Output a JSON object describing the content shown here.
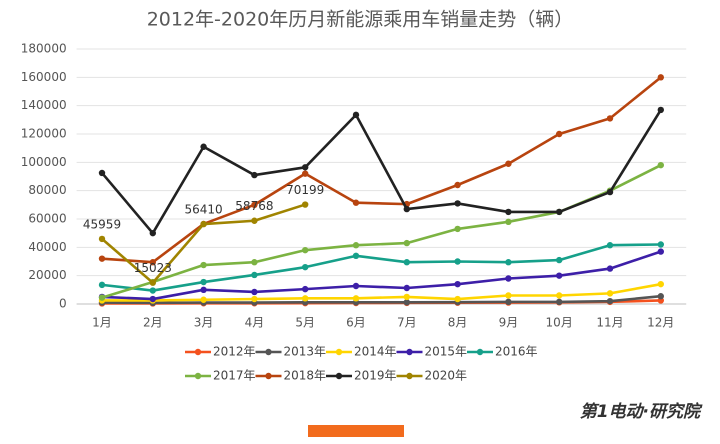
{
  "chart_data": {
    "type": "line",
    "title": "2012年-2020年历月新能源乘用车销量走势（辆）",
    "brand": "第1电动·研究院",
    "categories": [
      "1月",
      "2月",
      "3月",
      "4月",
      "5月",
      "6月",
      "7月",
      "8月",
      "9月",
      "10月",
      "11月",
      "12月"
    ],
    "ylim": [
      0,
      180000
    ],
    "yticks": [
      0,
      20000,
      40000,
      60000,
      80000,
      100000,
      120000,
      140000,
      160000,
      180000
    ],
    "grid": true,
    "legend": "bottom",
    "series": [
      {
        "name": "2012年",
        "color": "#f4511e",
        "values": [
          400,
          400,
          500,
          500,
          600,
          700,
          800,
          900,
          1000,
          1200,
          1500,
          2500
        ]
      },
      {
        "name": "2013年",
        "color": "#555555",
        "values": [
          1000,
          800,
          1000,
          1000,
          1200,
          1200,
          1200,
          1300,
          1500,
          1500,
          2000,
          5500
        ]
      },
      {
        "name": "2014年",
        "color": "#ffd500",
        "values": [
          2500,
          2500,
          3000,
          3500,
          4000,
          4000,
          5000,
          3500,
          6000,
          6000,
          7500,
          14000
        ]
      },
      {
        "name": "2015年",
        "color": "#3d1fa8",
        "values": [
          5000,
          3500,
          10000,
          8500,
          10500,
          12700,
          11300,
          14000,
          18000,
          20000,
          25000,
          37000
        ]
      },
      {
        "name": "2016年",
        "color": "#16a08a",
        "values": [
          13500,
          9500,
          15500,
          20500,
          26000,
          34000,
          29500,
          30000,
          29500,
          31000,
          41500,
          42000
        ]
      },
      {
        "name": "2017年",
        "color": "#7cb342",
        "values": [
          4500,
          15500,
          27500,
          29500,
          38000,
          41500,
          43000,
          53000,
          58000,
          65000,
          80000,
          98000
        ]
      },
      {
        "name": "2018年",
        "color": "#b8440f",
        "values": [
          32000,
          29500,
          56500,
          70000,
          92000,
          71500,
          70500,
          84000,
          99000,
          120000,
          131000,
          160000
        ]
      },
      {
        "name": "2019年",
        "color": "#222222",
        "values": [
          92500,
          50000,
          111000,
          91000,
          96500,
          133500,
          67000,
          71000,
          65000,
          65000,
          79000,
          137000
        ]
      },
      {
        "name": "2020年",
        "color": "#a08400",
        "values": [
          45959,
          15023,
          56410,
          58768,
          70199,
          null,
          null,
          null,
          null,
          null,
          null,
          null
        ],
        "data_labels": true
      }
    ]
  }
}
